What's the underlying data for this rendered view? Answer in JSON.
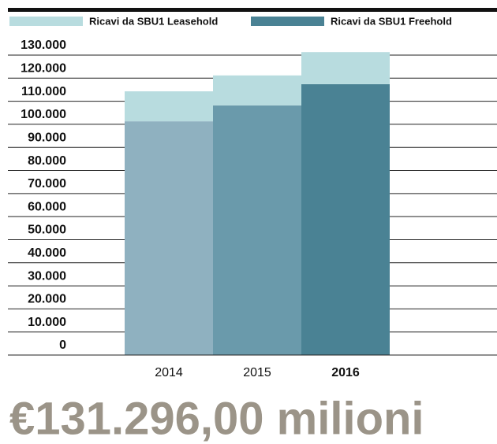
{
  "chart_data": {
    "type": "stacked_bar",
    "categories": [
      "2014",
      "2015",
      "2016"
    ],
    "highlight_category": "2016",
    "series": [
      {
        "name": "Ricavi da SBU1 Freehold",
        "color": "#4a8294",
        "bar_colors": [
          "#8fb1c0",
          "#6a9aab",
          "#4a8294"
        ],
        "values": [
          101300,
          108200,
          117400
        ]
      },
      {
        "name": "Ricavi da SBU1 Leasehold",
        "color": "#b8dcdf",
        "values": [
          13000,
          13000,
          13900
        ]
      }
    ],
    "legend_order": [
      1,
      0
    ],
    "ylim": [
      0,
      130000
    ],
    "yticks": [
      0,
      {
        "value": 10000,
        "label": "10.000"
      },
      {
        "value": 20000,
        "label": "20.000"
      },
      {
        "value": 30000,
        "label": "30.000"
      },
      {
        "value": 40000,
        "label": "40.000"
      },
      {
        "value": 50000,
        "label": "50.000"
      },
      {
        "value": 60000,
        "label": "60.000"
      },
      {
        "value": 70000,
        "label": "70.000"
      },
      {
        "value": 80000,
        "label": "80.000"
      },
      {
        "value": 90000,
        "label": "90.000"
      },
      {
        "value": 100000,
        "label": "100.000"
      },
      {
        "value": 110000,
        "label": "110.000"
      },
      {
        "value": 120000,
        "label": "120.000"
      },
      {
        "value": 130000,
        "label": "130.000"
      }
    ],
    "grid": true,
    "headline": "€131.296,00 milioni"
  }
}
